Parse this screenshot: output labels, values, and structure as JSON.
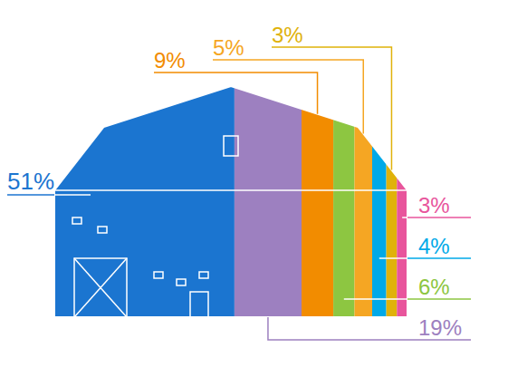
{
  "chart_data": {
    "type": "pictorial",
    "values": [
      51,
      19,
      9,
      6,
      5,
      4,
      3,
      3
    ],
    "value_labels": [
      "51%",
      "19%",
      "9%",
      "6%",
      "5%",
      "4%",
      "3%",
      "3%"
    ],
    "colors": [
      "#1b75d0",
      "#9d80c0",
      "#f28c00",
      "#8dc641",
      "#f5a623",
      "#00a9e8",
      "#e0b20a",
      "#e8559c"
    ],
    "xlim": [
      0,
      100
    ],
    "orientation": "horizontal",
    "stacked": true,
    "data_labels": true,
    "tick_labels": false
  }
}
